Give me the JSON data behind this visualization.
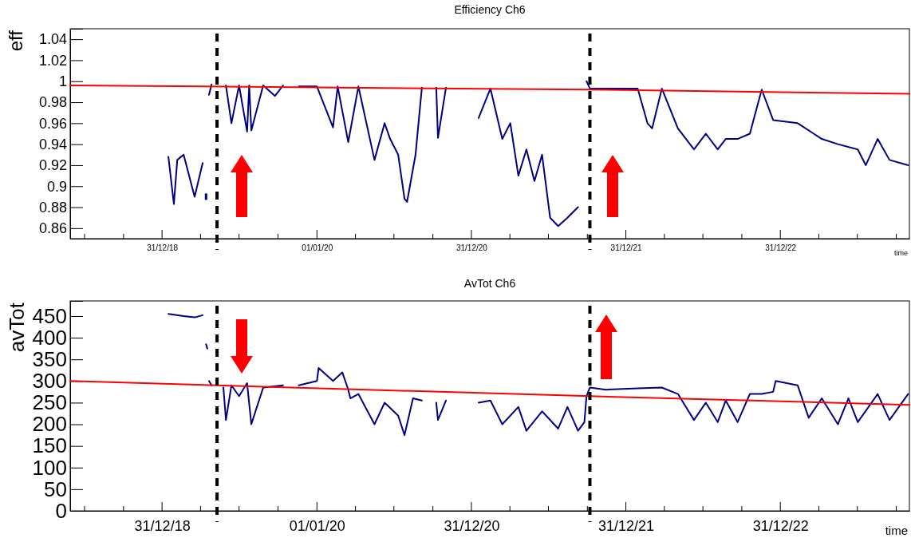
{
  "chart_data": [
    {
      "type": "line",
      "title": "Efficiency Ch6",
      "xlabel": "time",
      "ylabel": "eff",
      "marker": "none",
      "grid": false,
      "xlim": [
        "2018-05-28",
        "2023-11-01"
      ],
      "xticks": [
        {
          "value": "2018-07-01",
          "label": null
        },
        {
          "value": "2018-10-01",
          "label": null
        },
        {
          "value": "2018-12-31",
          "label": "31/12/18"
        },
        {
          "value": "2019-04-01",
          "label": null
        },
        {
          "value": "2019-07-01",
          "label": null
        },
        {
          "value": "2019-10-01",
          "label": null
        },
        {
          "value": "2020-01-01",
          "label": "01/01/20"
        },
        {
          "value": "2020-04-01",
          "label": null
        },
        {
          "value": "2020-07-01",
          "label": null
        },
        {
          "value": "2020-10-01",
          "label": null
        },
        {
          "value": "2020-12-31",
          "label": "31/12/20"
        },
        {
          "value": "2021-04-01",
          "label": null
        },
        {
          "value": "2021-07-01",
          "label": null
        },
        {
          "value": "2021-10-01",
          "label": null
        },
        {
          "value": "2021-12-31",
          "label": "31/12/21"
        },
        {
          "value": "2022-04-01",
          "label": null
        },
        {
          "value": "2022-07-01",
          "label": null
        },
        {
          "value": "2022-10-01",
          "label": null
        },
        {
          "value": "2022-12-31",
          "label": "31/12/22"
        },
        {
          "value": "2023-04-01",
          "label": null
        },
        {
          "value": "2023-07-01",
          "label": null
        },
        {
          "value": "2023-10-01",
          "label": null
        }
      ],
      "ylim": [
        0.85,
        1.05
      ],
      "yticks": [
        0.86,
        0.88,
        {
          "value": 0.9,
          "label": "0.9"
        },
        0.92,
        0.94,
        0.96,
        0.98,
        {
          "value": 1.0,
          "label": "1"
        },
        1.02,
        1.04
      ],
      "ref_lines": [
        {
          "axis": "x",
          "value": "2019-05-10",
          "color": "#000000",
          "line_style": "dashed"
        },
        {
          "axis": "x",
          "value": "2021-10-07",
          "color": "#000000",
          "line_style": "dashed"
        }
      ],
      "series": [
        {
          "color": "#000080",
          "line_style": "solid",
          "x": [
            "2019-01-15",
            "2019-01-28",
            "2019-02-05",
            "2019-02-20",
            "2019-03-18",
            "2019-04-06",
            "2019-04-10",
            "2019-04-14",
            "2019-04-17",
            "2019-04-21",
            "2019-04-27",
            "2019-05-15",
            "2019-05-25",
            "2019-05-31",
            "2019-06-13",
            "2019-07-01",
            "2019-07-20",
            "2019-07-25",
            "2019-07-30",
            "2019-08-27",
            "2019-09-24",
            "2019-10-13",
            "2019-11-01",
            "2019-11-19",
            "2020-01-01",
            "2020-02-08",
            "2020-02-19",
            "2020-03-15",
            "2020-04-08",
            "2020-05-16",
            "2020-06-09",
            "2020-06-22",
            "2020-07-11",
            "2020-07-26",
            "2020-08-01",
            "2020-08-21",
            "2020-09-05",
            "2020-09-20",
            "2020-10-09",
            "2020-10-13",
            "2020-11-01",
            "2020-12-10",
            "2021-01-17",
            "2021-02-14",
            "2021-03-14",
            "2021-04-02",
            "2021-04-21",
            "2021-05-10",
            "2021-05-29",
            "2021-06-16",
            "2021-07-05",
            "2021-07-24",
            "2021-08-15",
            "2021-09-09",
            "2021-09-24",
            "2021-09-29",
            "2021-10-07",
            "2022-01-28",
            "2022-02-20",
            "2022-03-03",
            "2022-03-26",
            "2022-05-03",
            "2022-06-10",
            "2022-07-08",
            "2022-08-05",
            "2022-08-24",
            "2022-09-21",
            "2022-10-20",
            "2022-11-17",
            "2022-12-14",
            "2023-02-10",
            "2023-04-08",
            "2023-05-16",
            "2023-07-02",
            "2023-07-21",
            "2023-08-18",
            "2023-09-15",
            "2023-10-29"
          ],
          "values": [
            0.928,
            0.883,
            0.925,
            0.93,
            0.89,
            0.922,
            null,
            0.89,
            null,
            0.987,
            0.997,
            null,
            null,
            0.996,
            0.96,
            0.996,
            0.952,
            0.996,
            0.953,
            0.996,
            0.986,
            0.996,
            null,
            0.995,
            0.995,
            0.956,
            0.995,
            0.942,
            0.995,
            0.925,
            0.96,
            0.945,
            0.93,
            0.888,
            0.885,
            0.93,
            0.994,
            null,
            0.994,
            0.946,
            0.994,
            null,
            0.965,
            0.993,
            0.945,
            0.96,
            0.91,
            0.935,
            0.905,
            0.93,
            0.87,
            0.862,
            0.87,
            0.88,
            null,
            1.0,
            0.993,
            0.993,
            0.96,
            0.955,
            0.993,
            0.955,
            0.935,
            0.95,
            0.935,
            0.945,
            0.945,
            0.95,
            0.992,
            0.963,
            0.96,
            0.945,
            0.94,
            0.935,
            0.92,
            0.945,
            0.925,
            0.92
          ]
        },
        {
          "color": "#ff0000",
          "line_style": "solid",
          "x": [
            "2018-05-28",
            "2021-10-07",
            "2023-11-01"
          ],
          "values": [
            0.996,
            0.992,
            0.988
          ]
        }
      ]
    },
    {
      "type": "line",
      "title": "AvTot Ch6",
      "xlabel": "time",
      "ylabel": "avTot",
      "marker": "none",
      "grid": false,
      "xlim": [
        "2018-05-28",
        "2023-11-01"
      ],
      "xticks": [
        {
          "value": "2018-07-01",
          "label": null
        },
        {
          "value": "2018-10-01",
          "label": null
        },
        {
          "value": "2018-12-31",
          "label": "31/12/18"
        },
        {
          "value": "2019-04-01",
          "label": null
        },
        {
          "value": "2019-07-01",
          "label": null
        },
        {
          "value": "2019-10-01",
          "label": null
        },
        {
          "value": "2020-01-01",
          "label": "01/01/20"
        },
        {
          "value": "2020-04-01",
          "label": null
        },
        {
          "value": "2020-07-01",
          "label": null
        },
        {
          "value": "2020-10-01",
          "label": null
        },
        {
          "value": "2020-12-31",
          "label": "31/12/20"
        },
        {
          "value": "2021-04-01",
          "label": null
        },
        {
          "value": "2021-07-01",
          "label": null
        },
        {
          "value": "2021-10-01",
          "label": null
        },
        {
          "value": "2021-12-31",
          "label": "31/12/21"
        },
        {
          "value": "2022-04-01",
          "label": null
        },
        {
          "value": "2022-07-01",
          "label": null
        },
        {
          "value": "2022-10-01",
          "label": null
        },
        {
          "value": "2022-12-31",
          "label": "31/12/22"
        },
        {
          "value": "2023-04-01",
          "label": null
        },
        {
          "value": "2023-07-01",
          "label": null
        },
        {
          "value": "2023-10-01",
          "label": null
        }
      ],
      "ylim": [
        0,
        485
      ],
      "yticks": [
        0,
        50,
        100,
        150,
        200,
        250,
        300,
        350,
        400,
        450
      ],
      "ref_lines": [
        {
          "axis": "x",
          "value": "2019-05-10",
          "color": "#000000",
          "line_style": "dashed"
        },
        {
          "axis": "x",
          "value": "2021-10-07",
          "color": "#000000",
          "line_style": "dashed"
        }
      ],
      "series": [
        {
          "color": "#000080",
          "line_style": "solid",
          "x": [
            "2019-01-15",
            "2019-02-20",
            "2019-03-18",
            "2019-04-06",
            "2019-04-10",
            "2019-04-14",
            "2019-04-17",
            "2019-04-19",
            "2019-04-21",
            "2019-04-27",
            "2019-05-15",
            "2019-05-25",
            "2019-05-31",
            "2019-06-13",
            "2019-07-01",
            "2019-07-20",
            "2019-07-30",
            "2019-08-27",
            "2019-10-13",
            "2019-11-01",
            "2019-11-19",
            "2020-01-01",
            "2020-01-05",
            "2020-02-08",
            "2020-03-01",
            "2020-03-15",
            "2020-03-20",
            "2020-04-08",
            "2020-05-16",
            "2020-06-09",
            "2020-07-11",
            "2020-07-26",
            "2020-08-15",
            "2020-09-05",
            "2020-09-20",
            "2020-10-09",
            "2020-10-13",
            "2020-11-01",
            "2020-12-10",
            "2021-01-17",
            "2021-02-14",
            "2021-03-14",
            "2021-04-21",
            "2021-05-10",
            "2021-06-16",
            "2021-07-24",
            "2021-08-15",
            "2021-09-09",
            "2021-09-24",
            "2021-09-29",
            "2021-10-07",
            "2021-11-14",
            "2022-01-28",
            "2022-03-26",
            "2022-05-03",
            "2022-06-10",
            "2022-07-08",
            "2022-08-05",
            "2022-08-24",
            "2022-09-21",
            "2022-10-20",
            "2022-11-17",
            "2022-12-14",
            "2022-12-20",
            "2023-02-10",
            "2023-03-08",
            "2023-04-08",
            "2023-05-16",
            "2023-06-10",
            "2023-07-02",
            "2023-08-18",
            "2023-09-15",
            "2023-10-29"
          ],
          "values": [
            455,
            450,
            447,
            452,
            null,
            385,
            375,
            null,
            300,
            290,
            null,
            285,
            210,
            290,
            265,
            295,
            200,
            285,
            290,
            null,
            290,
            300,
            330,
            300,
            320,
            280,
            260,
            270,
            200,
            250,
            220,
            175,
            260,
            255,
            null,
            250,
            210,
            255,
            null,
            250,
            255,
            200,
            240,
            185,
            230,
            190,
            240,
            185,
            205,
            265,
            285,
            280,
            283,
            285,
            270,
            210,
            250,
            205,
            255,
            205,
            270,
            270,
            275,
            300,
            290,
            215,
            260,
            200,
            260,
            205,
            270,
            210,
            270
          ]
        },
        {
          "color": "#ff0000",
          "line_style": "solid",
          "x": [
            "2018-05-28",
            "2019-05-10",
            "2021-10-07",
            "2023-11-01"
          ],
          "values": [
            300,
            290,
            265,
            245
          ]
        }
      ]
    }
  ]
}
